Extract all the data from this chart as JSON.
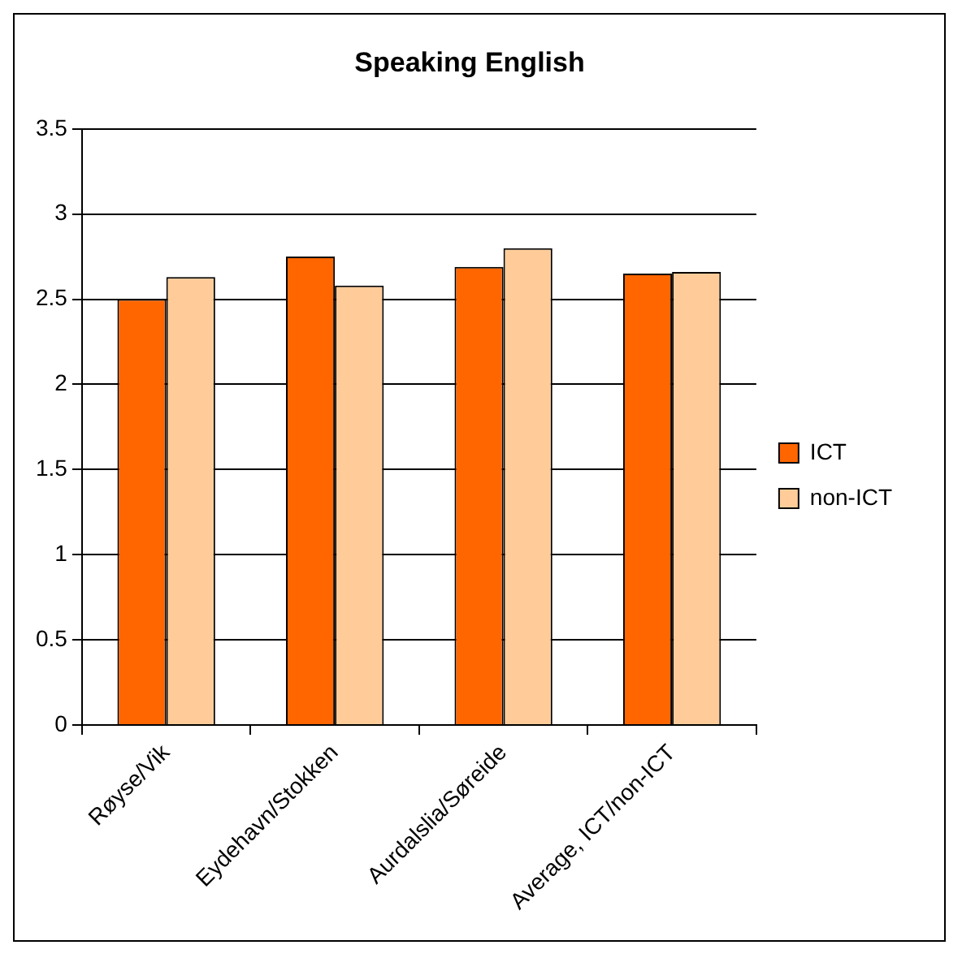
{
  "chart_data": {
    "type": "bar",
    "title": "Speaking English",
    "categories": [
      "Røyse/Vik",
      "Eydehavn/Stokken",
      "Aurdalslia/Søreide",
      "Average, ICT/non-ICT"
    ],
    "series": [
      {
        "name": "ICT",
        "color": "#ff6600",
        "values": [
          2.5,
          2.75,
          2.69,
          2.65
        ]
      },
      {
        "name": "non-ICT",
        "color": "#ffcc99",
        "values": [
          2.63,
          2.58,
          2.8,
          2.66
        ]
      }
    ],
    "ylim": [
      0,
      3.5
    ],
    "yticks": [
      0,
      0.5,
      1,
      1.5,
      2,
      2.5,
      3,
      3.5
    ],
    "grid": "y",
    "legend": "right"
  }
}
